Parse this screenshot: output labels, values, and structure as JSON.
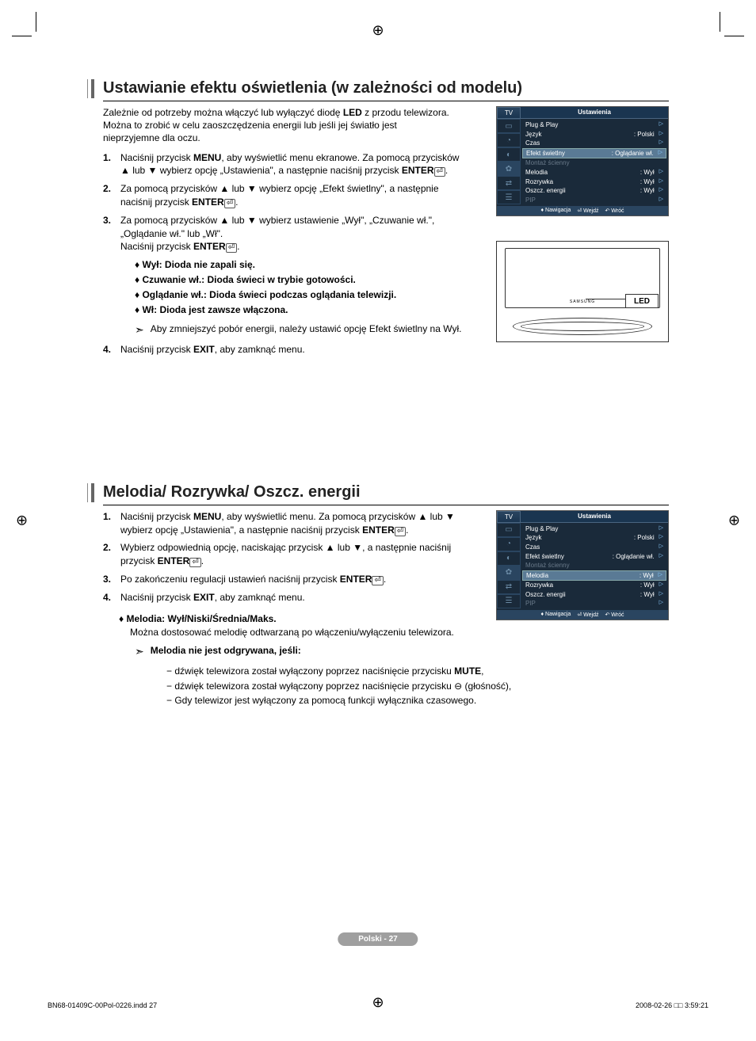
{
  "section1": {
    "title": "Ustawianie efektu oświetlenia (w zależności od modelu)",
    "intro": "Zależnie od potrzeby można włączyć lub wyłączyć diodę LED z przodu telewizora. Można to zrobić w celu zaoszczędzenia energii lub jeśli jej światło jest nieprzyjemne dla oczu.",
    "step1": "Naciśnij przycisk MENU, aby wyświetlić menu ekranowe. Za pomocą przycisków ▲ lub ▼ wybierz opcję „Ustawienia\", a następnie naciśnij przycisk ENTER⏎.",
    "step2": "Za pomocą przycisków ▲ lub ▼ wybierz opcję „Efekt świetlny\", a następnie naciśnij przycisk ENTER⏎.",
    "step3a": "Za pomocą przycisków ▲ lub ▼ wybierz ustawienie „Wył\", „Czuwanie wł.\", „Oglądanie wł.\" lub „Wł\".",
    "step3b": "Naciśnij przycisk ENTER⏎.",
    "bullets": {
      "b1": "Wył: Dioda nie zapali się.",
      "b2": "Czuwanie wł.: Dioda świeci w trybie gotowości.",
      "b3": "Oglądanie wł.: Dioda świeci podczas oglądania telewizji.",
      "b4": "Wł: Dioda jest zawsze włączona."
    },
    "note": "Aby zmniejszyć pobór energii, należy ustawić opcję Efekt świetlny na Wył.",
    "step4": "Naciśnij przycisk EXIT, aby zamknąć menu."
  },
  "section2": {
    "title": "Melodia/ Rozrywka/ Oszcz. energii",
    "step1": "Naciśnij przycisk MENU, aby wyświetlić menu. Za pomocą przycisków ▲ lub ▼ wybierz opcję „Ustawienia\", a następnie naciśnij przycisk ENTER⏎.",
    "step2": "Wybierz odpowiednią opcję, naciskając przycisk ▲ lub ▼, a następnie naciśnij przycisk ENTER⏎.",
    "step3": "Po zakończeniu regulacji ustawień naciśnij przycisk ENTER⏎.",
    "step4": "Naciśnij przycisk EXIT, aby zamknąć menu.",
    "melody_title": "Melodia: Wył/Niski/Średnia/Maks.",
    "melody_desc": "Można dostosować melodię odtwarzaną po włączeniu/wyłączeniu telewizora.",
    "note_title": "Melodia nie jest odgrywana, jeśli:",
    "dash1": "− dźwięk telewizora został wyłączony poprzez naciśnięcie przycisku MUTE,",
    "dash2": "− dźwięk telewizora został wyłączony poprzez naciśnięcie przycisku ⊖ (głośność),",
    "dash3": "− Gdy telewizor jest wyłączony za pomocą funkcji wyłącznika czasowego."
  },
  "osd": {
    "tab": "TV",
    "title": "Ustawienia",
    "items": {
      "plugplay": "Plug & Play",
      "jezyk": "Język",
      "jezyk_val": ": Polski",
      "czas": "Czas",
      "efekt": "Efekt świetlny",
      "efekt_val": ": Oglądanie wł.",
      "montaz": "Montaż ścienny",
      "melodia": "Melodia",
      "melodia_val": ": Wył",
      "rozrywka": "Rozrywka",
      "rozrywka_val": ": Wył",
      "oszcz": "Oszcz. energii",
      "oszcz_val": ": Wył",
      "pip": "PIP"
    },
    "footer": {
      "nav": "Nawigacja",
      "enter": "Wejdź",
      "back": "Wróć"
    }
  },
  "tv": {
    "led": "LED",
    "brand": "SAMSUNG"
  },
  "page_label": "Polski - 27",
  "doc": {
    "file": "BN68-01409C-00Pol-0226.indd   27",
    "timestamp": "2008-02-26   □□ 3:59:21"
  }
}
